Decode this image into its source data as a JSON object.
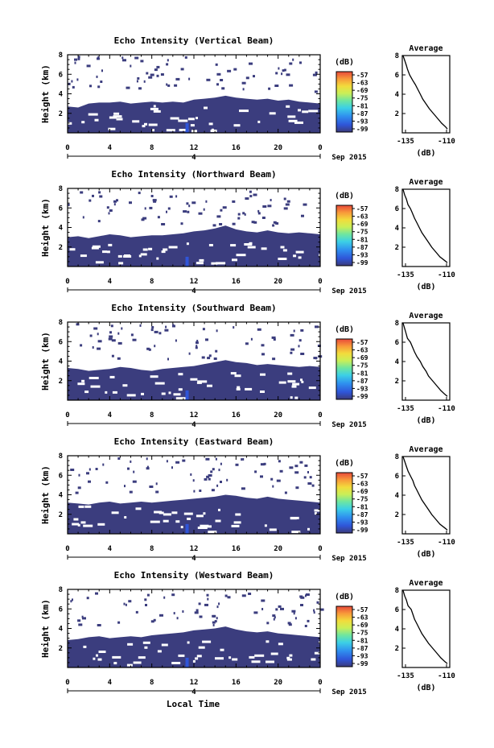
{
  "figure": {
    "xlabel_bottom": "Local Time",
    "date_label": "Sep 2015",
    "date_tick": "4"
  },
  "chart_data": [
    {
      "type": "heatmap",
      "title": "Echo Intensity (Vertical Beam)",
      "xlabel": "",
      "ylabel": "Height (km)",
      "xlim": [
        0,
        24
      ],
      "ylim": [
        0,
        8
      ],
      "xticks": [
        "0",
        "4",
        "8",
        "12",
        "16",
        "20",
        "0"
      ],
      "yticks": [
        "2",
        "4",
        "6",
        "8"
      ],
      "colorbar": {
        "unit": "(dB)",
        "ticks": [
          "-57",
          "-63",
          "-69",
          "-75",
          "-81",
          "-87",
          "-93",
          "-99"
        ]
      },
      "echo_top_km": [
        [
          0,
          2.7
        ],
        [
          1,
          2.6
        ],
        [
          2,
          3.0
        ],
        [
          3,
          3.1
        ],
        [
          4,
          3.1
        ],
        [
          5,
          3.2
        ],
        [
          6,
          3.0
        ],
        [
          7,
          3.1
        ],
        [
          8,
          3.2
        ],
        [
          9,
          3.1
        ],
        [
          10,
          3.2
        ],
        [
          11,
          3.1
        ],
        [
          12,
          3.4
        ],
        [
          13,
          3.5
        ],
        [
          14,
          3.6
        ],
        [
          15,
          3.8
        ],
        [
          16,
          3.6
        ],
        [
          17,
          3.5
        ],
        [
          18,
          3.4
        ],
        [
          19,
          3.5
        ],
        [
          20,
          3.3
        ],
        [
          21,
          3.4
        ],
        [
          22,
          3.2
        ],
        [
          23,
          3.1
        ],
        [
          24,
          3.0
        ]
      ],
      "average_profile": {
        "title": "Average",
        "xlabel": "(dB)",
        "xlim": [
          -135,
          -110
        ],
        "xticks": [
          "-135",
          "-110"
        ],
        "yticks": [
          "2",
          "4",
          "6",
          "8"
        ],
        "points": [
          [
            -136.5,
            8.0
          ],
          [
            -135.5,
            7.5
          ],
          [
            -134.5,
            7.0
          ],
          [
            -133.8,
            6.6
          ],
          [
            -132.5,
            6.0
          ],
          [
            -130.5,
            5.4
          ],
          [
            -129.0,
            5.0
          ],
          [
            -127.5,
            4.5
          ],
          [
            -126.0,
            4.0
          ],
          [
            -124.5,
            3.5
          ],
          [
            -122.5,
            3.0
          ],
          [
            -120.5,
            2.5
          ],
          [
            -118.0,
            2.0
          ],
          [
            -115.5,
            1.5
          ],
          [
            -113.0,
            1.0
          ],
          [
            -110.5,
            0.6
          ],
          [
            -109.5,
            0.4
          ]
        ]
      }
    },
    {
      "type": "heatmap",
      "title": "Echo Intensity (Northward Beam)",
      "xlabel": "",
      "ylabel": "Height (km)",
      "xlim": [
        0,
        24
      ],
      "ylim": [
        0,
        8
      ],
      "xticks": [
        "0",
        "4",
        "8",
        "12",
        "16",
        "20",
        "0"
      ],
      "yticks": [
        "2",
        "4",
        "6",
        "8"
      ],
      "colorbar": {
        "unit": "(dB)",
        "ticks": [
          "-57",
          "-63",
          "-69",
          "-75",
          "-81",
          "-87",
          "-93",
          "-99"
        ]
      },
      "echo_top_km": [
        [
          0,
          3.0
        ],
        [
          1,
          3.1
        ],
        [
          2,
          2.9
        ],
        [
          3,
          3.1
        ],
        [
          4,
          3.3
        ],
        [
          5,
          3.2
        ],
        [
          6,
          3.0
        ],
        [
          7,
          3.1
        ],
        [
          8,
          3.2
        ],
        [
          9,
          3.2
        ],
        [
          10,
          3.3
        ],
        [
          11,
          3.4
        ],
        [
          12,
          3.6
        ],
        [
          13,
          3.7
        ],
        [
          14,
          3.9
        ],
        [
          15,
          4.2
        ],
        [
          16,
          3.8
        ],
        [
          17,
          3.6
        ],
        [
          18,
          3.5
        ],
        [
          19,
          3.7
        ],
        [
          20,
          3.5
        ],
        [
          21,
          3.4
        ],
        [
          22,
          3.5
        ],
        [
          23,
          3.4
        ],
        [
          24,
          3.3
        ]
      ],
      "average_profile": {
        "title": "Average",
        "xlabel": "(dB)",
        "xlim": [
          -135,
          -110
        ],
        "xticks": [
          "-135",
          "-110"
        ],
        "yticks": [
          "2",
          "4",
          "6",
          "8"
        ],
        "points": [
          [
            -136.5,
            8.0
          ],
          [
            -135.5,
            7.4
          ],
          [
            -134.5,
            7.0
          ],
          [
            -133.5,
            6.4
          ],
          [
            -132.0,
            6.0
          ],
          [
            -131.0,
            5.6
          ],
          [
            -129.5,
            5.0
          ],
          [
            -128.0,
            4.5
          ],
          [
            -126.5,
            4.0
          ],
          [
            -125.0,
            3.5
          ],
          [
            -123.0,
            3.0
          ],
          [
            -121.0,
            2.5
          ],
          [
            -119.0,
            2.0
          ],
          [
            -116.5,
            1.5
          ],
          [
            -114.0,
            1.0
          ],
          [
            -111.0,
            0.6
          ],
          [
            -109.5,
            0.4
          ]
        ]
      }
    },
    {
      "type": "heatmap",
      "title": "Echo Intensity (Southward Beam)",
      "xlabel": "",
      "ylabel": "Height (km)",
      "xlim": [
        0,
        24
      ],
      "ylim": [
        0,
        8
      ],
      "xticks": [
        "0",
        "4",
        "8",
        "12",
        "16",
        "20",
        "0"
      ],
      "yticks": [
        "2",
        "4",
        "6",
        "8"
      ],
      "colorbar": {
        "unit": "(dB)",
        "ticks": [
          "-57",
          "-63",
          "-69",
          "-75",
          "-81",
          "-87",
          "-93",
          "-99"
        ]
      },
      "echo_top_km": [
        [
          0,
          3.3
        ],
        [
          1,
          3.2
        ],
        [
          2,
          3.0
        ],
        [
          3,
          3.1
        ],
        [
          4,
          3.2
        ],
        [
          5,
          3.4
        ],
        [
          6,
          3.3
        ],
        [
          7,
          3.1
        ],
        [
          8,
          3.0
        ],
        [
          9,
          3.2
        ],
        [
          10,
          3.3
        ],
        [
          11,
          3.4
        ],
        [
          12,
          3.5
        ],
        [
          13,
          3.7
        ],
        [
          14,
          3.9
        ],
        [
          15,
          4.1
        ],
        [
          16,
          3.9
        ],
        [
          17,
          3.8
        ],
        [
          18,
          3.6
        ],
        [
          19,
          3.7
        ],
        [
          20,
          3.6
        ],
        [
          21,
          3.5
        ],
        [
          22,
          3.4
        ],
        [
          23,
          3.5
        ],
        [
          24,
          3.4
        ]
      ],
      "average_profile": {
        "title": "Average",
        "xlabel": "(dB)",
        "xlim": [
          -135,
          -110
        ],
        "xticks": [
          "-135",
          "-110"
        ],
        "yticks": [
          "2",
          "4",
          "6",
          "8"
        ],
        "points": [
          [
            -136.5,
            8.0
          ],
          [
            -135.5,
            7.4
          ],
          [
            -134.8,
            7.0
          ],
          [
            -133.8,
            6.4
          ],
          [
            -132.0,
            6.0
          ],
          [
            -130.5,
            5.4
          ],
          [
            -129.5,
            5.0
          ],
          [
            -128.0,
            4.5
          ],
          [
            -126.0,
            4.0
          ],
          [
            -124.5,
            3.5
          ],
          [
            -122.5,
            3.0
          ],
          [
            -121.0,
            2.5
          ],
          [
            -118.5,
            2.0
          ],
          [
            -116.0,
            1.5
          ],
          [
            -113.5,
            1.0
          ],
          [
            -111.0,
            0.6
          ],
          [
            -109.5,
            0.4
          ]
        ]
      }
    },
    {
      "type": "heatmap",
      "title": "Echo Intensity (Eastward Beam)",
      "xlabel": "",
      "ylabel": "Height (km)",
      "xlim": [
        0,
        24
      ],
      "ylim": [
        0,
        8
      ],
      "xticks": [
        "0",
        "4",
        "8",
        "12",
        "16",
        "20",
        "0"
      ],
      "yticks": [
        "2",
        "4",
        "6",
        "8"
      ],
      "colorbar": {
        "unit": "(dB)",
        "ticks": [
          "-57",
          "-63",
          "-69",
          "-75",
          "-81",
          "-87",
          "-93",
          "-99"
        ]
      },
      "echo_top_km": [
        [
          0,
          3.2
        ],
        [
          1,
          3.1
        ],
        [
          2,
          3.0
        ],
        [
          3,
          3.2
        ],
        [
          4,
          3.3
        ],
        [
          5,
          3.1
        ],
        [
          6,
          3.2
        ],
        [
          7,
          3.3
        ],
        [
          8,
          3.2
        ],
        [
          9,
          3.3
        ],
        [
          10,
          3.4
        ],
        [
          11,
          3.5
        ],
        [
          12,
          3.6
        ],
        [
          13,
          3.7
        ],
        [
          14,
          3.8
        ],
        [
          15,
          4.0
        ],
        [
          16,
          3.9
        ],
        [
          17,
          3.7
        ],
        [
          18,
          3.6
        ],
        [
          19,
          3.8
        ],
        [
          20,
          3.6
        ],
        [
          21,
          3.5
        ],
        [
          22,
          3.4
        ],
        [
          23,
          3.3
        ],
        [
          24,
          3.2
        ]
      ],
      "average_profile": {
        "title": "Average",
        "xlabel": "(dB)",
        "xlim": [
          -135,
          -110
        ],
        "xticks": [
          "-135",
          "-110"
        ],
        "yticks": [
          "2",
          "4",
          "6",
          "8"
        ],
        "points": [
          [
            -136.5,
            8.0
          ],
          [
            -135.5,
            7.5
          ],
          [
            -134.5,
            7.0
          ],
          [
            -133.5,
            6.5
          ],
          [
            -132.0,
            6.0
          ],
          [
            -130.5,
            5.5
          ],
          [
            -129.5,
            5.0
          ],
          [
            -128.0,
            4.5
          ],
          [
            -126.5,
            4.0
          ],
          [
            -125.0,
            3.5
          ],
          [
            -123.0,
            3.0
          ],
          [
            -121.0,
            2.5
          ],
          [
            -119.0,
            2.0
          ],
          [
            -116.5,
            1.5
          ],
          [
            -114.0,
            1.0
          ],
          [
            -111.0,
            0.6
          ],
          [
            -109.5,
            0.4
          ]
        ]
      }
    },
    {
      "type": "heatmap",
      "title": "Echo Intensity (Westward Beam)",
      "xlabel": "",
      "ylabel": "Height (km)",
      "xlim": [
        0,
        24
      ],
      "ylim": [
        0,
        8
      ],
      "xticks": [
        "0",
        "4",
        "8",
        "12",
        "16",
        "20",
        "0"
      ],
      "yticks": [
        "2",
        "4",
        "6",
        "8"
      ],
      "colorbar": {
        "unit": "(dB)",
        "ticks": [
          "-57",
          "-63",
          "-69",
          "-75",
          "-81",
          "-87",
          "-93",
          "-99"
        ]
      },
      "echo_top_km": [
        [
          0,
          2.8
        ],
        [
          1,
          2.9
        ],
        [
          2,
          3.1
        ],
        [
          3,
          3.2
        ],
        [
          4,
          3.0
        ],
        [
          5,
          3.1
        ],
        [
          6,
          3.2
        ],
        [
          7,
          3.1
        ],
        [
          8,
          3.3
        ],
        [
          9,
          3.4
        ],
        [
          10,
          3.5
        ],
        [
          11,
          3.6
        ],
        [
          12,
          3.8
        ],
        [
          13,
          3.9
        ],
        [
          14,
          4.0
        ],
        [
          15,
          4.2
        ],
        [
          16,
          3.9
        ],
        [
          17,
          3.7
        ],
        [
          18,
          3.6
        ],
        [
          19,
          3.7
        ],
        [
          20,
          3.5
        ],
        [
          21,
          3.4
        ],
        [
          22,
          3.3
        ],
        [
          23,
          3.2
        ],
        [
          24,
          3.1
        ]
      ],
      "average_profile": {
        "title": "Average",
        "xlabel": "(dB)",
        "xlim": [
          -135,
          -110
        ],
        "xticks": [
          "-135",
          "-110"
        ],
        "yticks": [
          "2",
          "4",
          "6",
          "8"
        ],
        "points": [
          [
            -136.5,
            8.0
          ],
          [
            -135.5,
            7.4
          ],
          [
            -134.5,
            7.0
          ],
          [
            -133.5,
            6.4
          ],
          [
            -131.5,
            6.0
          ],
          [
            -130.5,
            5.5
          ],
          [
            -129.5,
            5.0
          ],
          [
            -128.0,
            4.5
          ],
          [
            -126.5,
            4.0
          ],
          [
            -125.0,
            3.5
          ],
          [
            -123.0,
            3.0
          ],
          [
            -121.0,
            2.5
          ],
          [
            -118.5,
            2.0
          ],
          [
            -116.0,
            1.5
          ],
          [
            -113.5,
            1.0
          ],
          [
            -111.0,
            0.6
          ],
          [
            -109.5,
            0.4
          ]
        ]
      }
    }
  ]
}
